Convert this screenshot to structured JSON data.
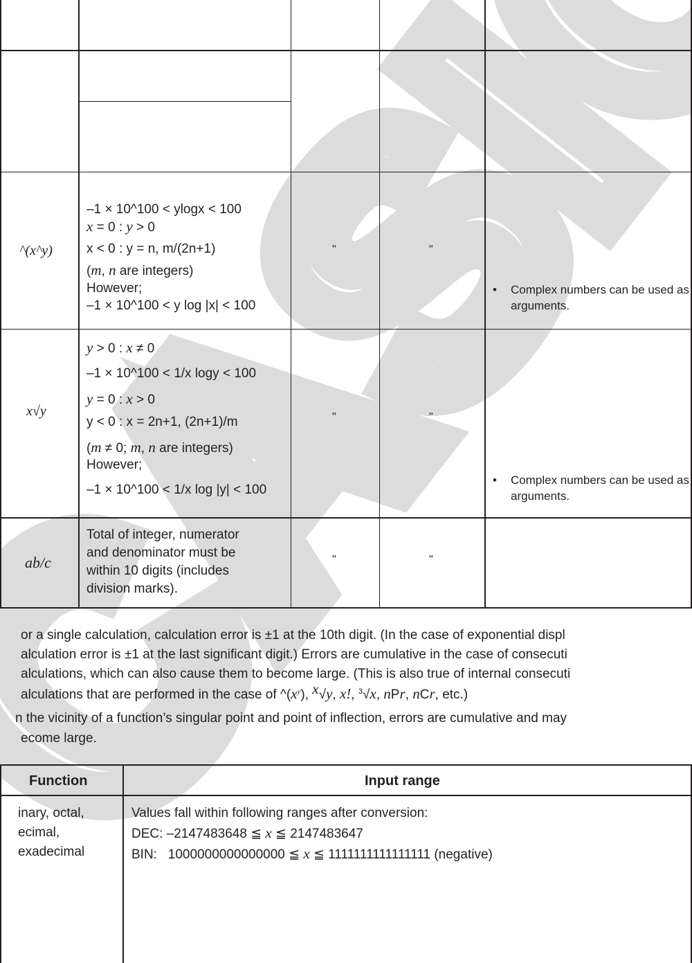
{
  "watermark": "CASIO",
  "table1": {
    "rows": [
      {
        "function": "^(x^y)",
        "range_lines": [
          "–1 × 10^100 < ylogx < 100",
          "x = 0 : y > 0",
          "x < 0 : y = n, m/(2n+1)",
          "(m, n are integers)",
          "However;",
          "–1 × 10^100 < y log |x| < 100"
        ],
        "ditto1": "\"",
        "ditto2": "\"",
        "note": "Complex numbers can be used as arguments."
      },
      {
        "function": "x√y",
        "range_lines": [
          "y > 0 : x ≠ 0",
          "–1 × 10^100 < 1/x logy < 100",
          "y = 0 : x > 0",
          "y < 0 : x = 2n+1, (2n+1)/m",
          "(m ≠ 0; m, n are integers)",
          "However;",
          "–1 × 10^100 < 1/x log |y| < 100"
        ],
        "ditto1": "\"",
        "ditto2": "\"",
        "note": "Complex numbers can be used as arguments."
      },
      {
        "function": "ab/c",
        "range_lines": [
          "Total of integer, numerator",
          "and denominator must be",
          "within 10 digits (includes",
          "division marks)."
        ],
        "ditto1": "\"",
        "ditto2": "\""
      }
    ]
  },
  "notes": {
    "para1": [
      "or a single calculation, calculation error is ±1 at the 10th digit. (In the case of exponential displ",
      "alculation error is ±1 at the last significant digit.) Errors are cumulative in the case of consecuti",
      "alculations, which can also cause them to become large. (This is also true of internal consecuti",
      "alculations that are performed in the case of ^(x^y), x√y, x!, 3√x, nPr, nCr, etc.)"
    ],
    "para2": [
      "n the vicinity of a function’s singular point and point of inflection, errors are cumulative and may",
      "ecome large."
    ]
  },
  "table2": {
    "headers": [
      "Function",
      "Input range"
    ],
    "function_lines": [
      "inary, octal,",
      "ecimal,",
      "exadecimal"
    ],
    "range_lines": [
      "Values fall within following ranges after conversion:",
      "DEC: –2147483648 ≦ x ≦ 2147483647",
      "BIN:   1000000000000000 ≦ x ≦ 1111111111111111 (negative)"
    ]
  }
}
